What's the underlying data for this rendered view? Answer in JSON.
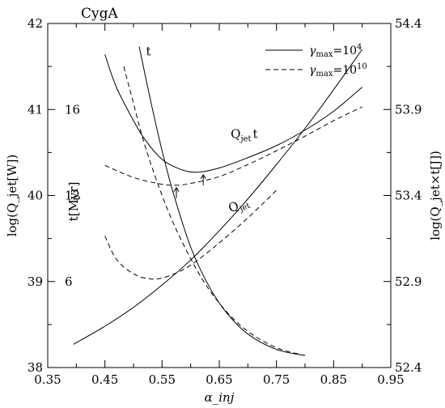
{
  "chart_data": {
    "type": "line",
    "title": "CygA",
    "xlabel": "α_inj",
    "ylabel_left": "log(Q_jet[W])",
    "ylabel_right": "log(Q_jet×t[J])",
    "ylabel_inner": "t[Myr]",
    "xlim": [
      0.35,
      0.95
    ],
    "ylim_left": [
      38,
      42
    ],
    "ylim_right": [
      52.4,
      54.4
    ],
    "x_ticks": [
      "0.35",
      "0.45",
      "0.55",
      "0.65",
      "0.75",
      "0.85",
      "0.95"
    ],
    "y_left_ticks": [
      "38",
      "39",
      "40",
      "41",
      "42"
    ],
    "y_right_ticks": [
      "52.4",
      "52.9",
      "53.4",
      "53.9",
      "54.4"
    ],
    "t_ticks": [
      {
        "label": "6",
        "y_left_equiv": 39.0
      },
      {
        "label": "12",
        "y_left_equiv": 40.0
      },
      {
        "label": "16",
        "y_left_equiv": 41.0
      }
    ],
    "grid": false,
    "legend_position": "top-right",
    "legend": [
      {
        "label": "γmax=10^4",
        "base": "γ",
        "sub": "max",
        "eq": "=10",
        "sup": "4",
        "style": "solid"
      },
      {
        "label": "γmax=10^10",
        "base": "γ",
        "sub": "max",
        "eq": "=10",
        "sup": "10",
        "style": "dashed"
      }
    ],
    "annotations": [
      {
        "text": "t",
        "x": 0.522,
        "y_left": 41.63
      },
      {
        "text": "Q_jet t",
        "base": "Q",
        "sub": "jet",
        "tail": "t",
        "x": 0.67,
        "y_left": 40.67
      },
      {
        "text": "Q_jet",
        "base": "Q",
        "sub": "jet",
        "x": 0.67,
        "y_left": 39.8
      }
    ],
    "series": [
      {
        "curve": "Q_jet",
        "style": "solid",
        "x": [
          0.395,
          0.45,
          0.5,
          0.55,
          0.6,
          0.65,
          0.7,
          0.75,
          0.8,
          0.85,
          0.9
        ],
        "y_left": [
          38.27,
          38.48,
          38.7,
          38.96,
          39.25,
          39.59,
          39.96,
          40.36,
          40.78,
          41.23,
          41.7
        ]
      },
      {
        "curve": "Q_jet",
        "style": "dashed",
        "x": [
          0.45,
          0.47,
          0.5,
          0.53,
          0.56,
          0.6,
          0.65,
          0.7,
          0.75
        ],
        "y_left": [
          39.53,
          39.26,
          39.09,
          39.03,
          39.06,
          39.19,
          39.45,
          39.74,
          40.06
        ]
      },
      {
        "curve": "Q_jet t",
        "style": "solid",
        "x": [
          0.45,
          0.47,
          0.5,
          0.52,
          0.55,
          0.58,
          0.61,
          0.65,
          0.7,
          0.75,
          0.8,
          0.85,
          0.9
        ],
        "y_left": [
          41.64,
          41.26,
          40.87,
          40.65,
          40.42,
          40.31,
          40.27,
          40.32,
          40.44,
          40.58,
          40.76,
          40.98,
          41.26
        ]
      },
      {
        "curve": "Q_jet t",
        "style": "dashed",
        "x": [
          0.45,
          0.5,
          0.55,
          0.575,
          0.6,
          0.65,
          0.7,
          0.75,
          0.8,
          0.85,
          0.9
        ],
        "y_left": [
          40.35,
          40.21,
          40.13,
          40.12,
          40.14,
          40.22,
          40.36,
          40.52,
          40.69,
          40.87,
          41.03
        ]
      },
      {
        "curve": "t",
        "style": "solid",
        "x": [
          0.51,
          0.53,
          0.55,
          0.57,
          0.6,
          0.63,
          0.66,
          0.7,
          0.75,
          0.8
        ],
        "y_left": [
          41.73,
          41.1,
          40.52,
          40.02,
          39.4,
          38.97,
          38.66,
          38.39,
          38.21,
          38.14
        ]
      },
      {
        "curve": "t",
        "style": "dashed",
        "x": [
          0.483,
          0.5,
          0.52,
          0.55,
          0.58,
          0.62,
          0.66,
          0.7,
          0.75,
          0.8
        ],
        "y_left": [
          41.5,
          41.07,
          40.58,
          40.0,
          39.53,
          39.03,
          38.67,
          38.42,
          38.23,
          38.14
        ]
      }
    ],
    "markers": [
      {
        "type": "arrow-up",
        "x": 0.575,
        "y_left": 40.12
      },
      {
        "type": "arrow-up",
        "x": 0.622,
        "y_left": 40.27
      }
    ]
  }
}
